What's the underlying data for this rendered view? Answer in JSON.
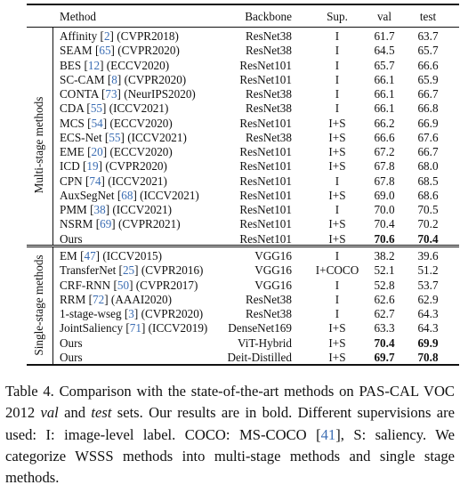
{
  "table": {
    "headers": {
      "method": "Method",
      "backbone": "Backbone",
      "sup": "Sup.",
      "val": "val",
      "test": "test"
    },
    "groups": [
      {
        "label": "Multi-stage methods",
        "rows": [
          {
            "name": "Affinity",
            "ref": "2",
            "venue": "(CVPR2018)",
            "backbone": "ResNet38",
            "sup": "I",
            "val": "61.7",
            "test": "63.7"
          },
          {
            "name": "SEAM",
            "ref": "65",
            "venue": "(CVPR2020)",
            "backbone": "ResNet38",
            "sup": "I",
            "val": "64.5",
            "test": "65.7"
          },
          {
            "name": "BES",
            "ref": "12",
            "venue": "(ECCV2020)",
            "backbone": "ResNet101",
            "sup": "I",
            "val": "65.7",
            "test": "66.6"
          },
          {
            "name": "SC-CAM",
            "ref": "8",
            "venue": "(CVPR2020)",
            "backbone": "ResNet101",
            "sup": "I",
            "val": "66.1",
            "test": "65.9"
          },
          {
            "name": "CONTA",
            "ref": "73",
            "venue": "(NeurIPS2020)",
            "backbone": "ResNet38",
            "sup": "I",
            "val": "66.1",
            "test": "66.7"
          },
          {
            "name": "CDA",
            "ref": "55",
            "venue": "(ICCV2021)",
            "backbone": "ResNet38",
            "sup": "I",
            "val": "66.1",
            "test": "66.8"
          },
          {
            "name": "MCS",
            "ref": "54",
            "venue": "(ECCV2020)",
            "backbone": "ResNet101",
            "sup": "I+S",
            "val": "66.2",
            "test": "66.9"
          },
          {
            "name": "ECS-Net",
            "ref": "55",
            "venue": "(ICCV2021)",
            "backbone": "ResNet38",
            "sup": "I+S",
            "val": "66.6",
            "test": "67.6"
          },
          {
            "name": "EME",
            "ref": "20",
            "venue": "(ECCV2020)",
            "backbone": "ResNet101",
            "sup": "I+S",
            "val": "67.2",
            "test": "66.7"
          },
          {
            "name": "ICD",
            "ref": "19",
            "venue": "(CVPR2020)",
            "backbone": "ResNet101",
            "sup": "I+S",
            "val": "67.8",
            "test": "68.0"
          },
          {
            "name": "CPN",
            "ref": "74",
            "venue": "(ICCV2021)",
            "backbone": "ResNet101",
            "sup": "I",
            "val": "67.8",
            "test": "68.5"
          },
          {
            "name": "AuxSegNet",
            "ref": "68",
            "venue": "(ICCV2021)",
            "backbone": "ResNet101",
            "sup": "I+S",
            "val": "69.0",
            "test": "68.6"
          },
          {
            "name": "PMM",
            "ref": "38",
            "venue": "(ICCV2021)",
            "backbone": "ResNet101",
            "sup": "I",
            "val": "70.0",
            "test": "70.5"
          },
          {
            "name": "NSRM",
            "ref": "69",
            "venue": "(CVPR2021)",
            "backbone": "ResNet101",
            "sup": "I+S",
            "val": "70.4",
            "test": "70.2"
          },
          {
            "name": "Ours",
            "ref": "",
            "venue": "",
            "backbone": "ResNet101",
            "sup": "I+S",
            "val": "70.6",
            "test": "70.4",
            "bold_val": true,
            "bold_test": true
          }
        ]
      },
      {
        "label": "Single-stage methods",
        "rows": [
          {
            "name": "EM",
            "ref": "47",
            "venue": "(ICCV2015)",
            "backbone": "VGG16",
            "sup": "I",
            "val": "38.2",
            "test": "39.6"
          },
          {
            "name": "TransferNet",
            "ref": "25",
            "venue": "(CVPR2016)",
            "backbone": "VGG16",
            "sup": "I+COCO",
            "val": "52.1",
            "test": "51.2"
          },
          {
            "name": "CRF-RNN",
            "ref": "50",
            "venue": "(CVPR2017)",
            "backbone": "VGG16",
            "sup": "I",
            "val": "52.8",
            "test": "53.7"
          },
          {
            "name": "RRM",
            "ref": "72",
            "venue": "(AAAI2020)",
            "backbone": "ResNet38",
            "sup": "I",
            "val": "62.6",
            "test": "62.9"
          },
          {
            "name": "1-stage-wseg",
            "ref": "3",
            "venue": "(CVPR2020)",
            "backbone": "ResNet38",
            "sup": "I",
            "val": "62.7",
            "test": "64.3"
          },
          {
            "name": "JointSaliency",
            "ref": "71",
            "venue": "(ICCV2019)",
            "backbone": "DenseNet169",
            "sup": "I+S",
            "val": "63.3",
            "test": "64.3"
          },
          {
            "name": "Ours",
            "ref": "",
            "venue": "",
            "backbone": "ViT-Hybrid",
            "sup": "I+S",
            "val": "70.4",
            "test": "69.9",
            "bold_val": true,
            "bold_test": true
          },
          {
            "name": "Ours",
            "ref": "",
            "venue": "",
            "backbone": "Deit-Distilled",
            "sup": "I+S",
            "val": "69.7",
            "test": "70.8",
            "bold_val": true,
            "bold_test": true
          }
        ]
      }
    ]
  },
  "caption": {
    "prefix": "Table 4. Comparison with the state-of-the-art methods on PAS-CAL VOC 2012 ",
    "val_word": "val",
    "and_word": " and ",
    "test_word": "test",
    "mid": " sets. Our results are in bold. Different supervisions are used: I: image-level label. COCO: MS-COCO [",
    "ref": "41",
    "suffix": "], S: saliency. We categorize WSSS methods into multi-stage methods and single stage methods."
  },
  "colors": {
    "reference_link": "#3b6db3",
    "text": "#111111"
  }
}
